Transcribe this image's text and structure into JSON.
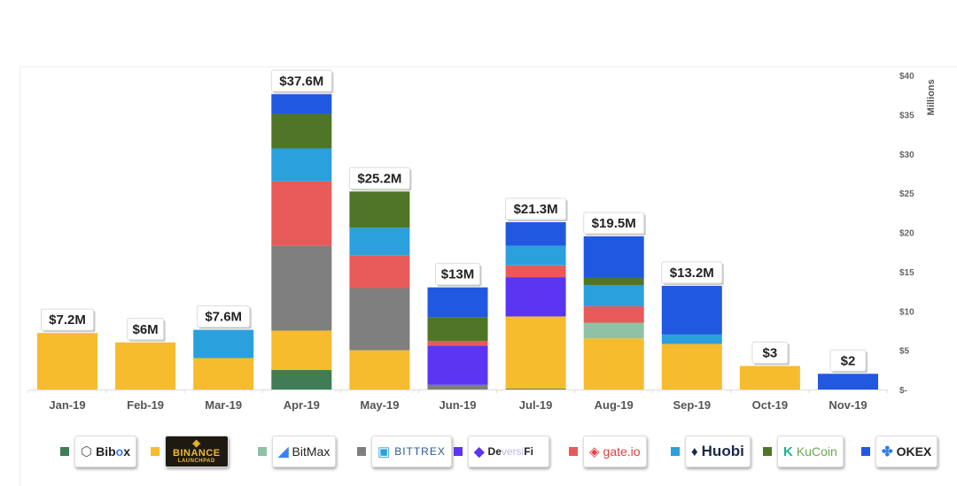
{
  "chart_data": {
    "type": "bar",
    "stacked": true,
    "title": "",
    "xlabel": "",
    "ylabel": "Millions",
    "y_axis_position": "right",
    "ylim": [
      0,
      40
    ],
    "yticks": [
      0,
      5,
      10,
      15,
      20,
      25,
      30,
      35,
      40
    ],
    "ytick_labels": [
      "$-",
      "$5",
      "$10",
      "$15",
      "$20",
      "$25",
      "$30",
      "$35",
      "$40"
    ],
    "grid": false,
    "legend_position": "bottom",
    "categories": [
      "Jan-19",
      "Feb-19",
      "Mar-19",
      "Apr-19",
      "May-19",
      "Jun-19",
      "Jul-19",
      "Aug-19",
      "Sep-19",
      "Oct-19",
      "Nov-19"
    ],
    "totals_labels": [
      "$7.2M",
      "$6M",
      "$7.6M",
      "$37.6M",
      "$25.2M",
      "$13M",
      "$21.3M",
      "$19.5M",
      "$13.2M",
      "$3",
      "$2"
    ],
    "totals": [
      7.2,
      6.0,
      7.6,
      37.6,
      25.2,
      13.0,
      21.3,
      19.5,
      13.2,
      3.0,
      2.0
    ],
    "series": [
      {
        "name": "Bibox",
        "color": "#3f7d56",
        "values": [
          0,
          0,
          0,
          2.5,
          0,
          0,
          0.1,
          0,
          0,
          0,
          0
        ]
      },
      {
        "name": "Binance Launchpad",
        "color": "#f7bb2e",
        "values": [
          7.2,
          6.0,
          4.0,
          5.0,
          5.0,
          0,
          9.2,
          6.5,
          5.8,
          3.0,
          0
        ]
      },
      {
        "name": "BitMax",
        "color": "#8fc2a4",
        "values": [
          0,
          0,
          0,
          0,
          0,
          0,
          0,
          2.0,
          0,
          0,
          0
        ]
      },
      {
        "name": "Bittrex",
        "color": "#7f7f7f",
        "values": [
          0,
          0,
          0,
          10.8,
          7.9,
          0.6,
          0,
          0,
          0,
          0,
          0
        ]
      },
      {
        "name": "DeversiFi",
        "color": "#5b35f2",
        "values": [
          0,
          0,
          0,
          0,
          0,
          5.0,
          5.0,
          0,
          0,
          0,
          0
        ]
      },
      {
        "name": "gate.io",
        "color": "#e85a5a",
        "values": [
          0,
          0,
          0,
          8.2,
          4.2,
          0.6,
          1.5,
          2.1,
          0,
          0,
          0
        ]
      },
      {
        "name": "Huobi",
        "color": "#2aa0dd",
        "values": [
          0,
          0,
          3.6,
          4.2,
          3.5,
          0,
          2.5,
          2.7,
          1.2,
          0,
          0
        ]
      },
      {
        "name": "KuCoin",
        "color": "#4f7526",
        "values": [
          0,
          0,
          0,
          4.4,
          4.6,
          3.0,
          0,
          0.9,
          0,
          0,
          0
        ]
      },
      {
        "name": "OKEX",
        "color": "#2158e0",
        "values": [
          0,
          0,
          0,
          2.5,
          0,
          3.8,
          3.0,
          5.3,
          6.2,
          0,
          2.0
        ]
      }
    ]
  },
  "legend": [
    {
      "name": "Bibox",
      "logo_text_a": "Bib",
      "logo_text_b": "o",
      "logo_text_c": "x",
      "icon": "cube-outline-icon"
    },
    {
      "name": "Binance Launchpad",
      "logo_text": "BINANCE",
      "logo_sub": "LAUNCHPAD",
      "icon": "binance-diamond-icon"
    },
    {
      "name": "BitMax",
      "logo_text": "BitMax",
      "icon": "bitmax-m-icon"
    },
    {
      "name": "Bittrex",
      "logo_text": "BITTREX",
      "icon": "bittrex-square-icon"
    },
    {
      "name": "DeversiFi",
      "logo_text_a": "De",
      "logo_text_b": "versi",
      "logo_text_c": "Fi",
      "icon": "deversifi-diamond-icon"
    },
    {
      "name": "gate.io",
      "logo_text": "gate.io",
      "icon": "gate-diamond-icon"
    },
    {
      "name": "Huobi",
      "logo_text": "Huobi",
      "icon": "huobi-flame-icon"
    },
    {
      "name": "KuCoin",
      "logo_text": "KuCoin",
      "icon": "kucoin-k-icon"
    },
    {
      "name": "OKEX",
      "logo_text": "OKEX",
      "icon": "okex-circles-icon"
    }
  ]
}
